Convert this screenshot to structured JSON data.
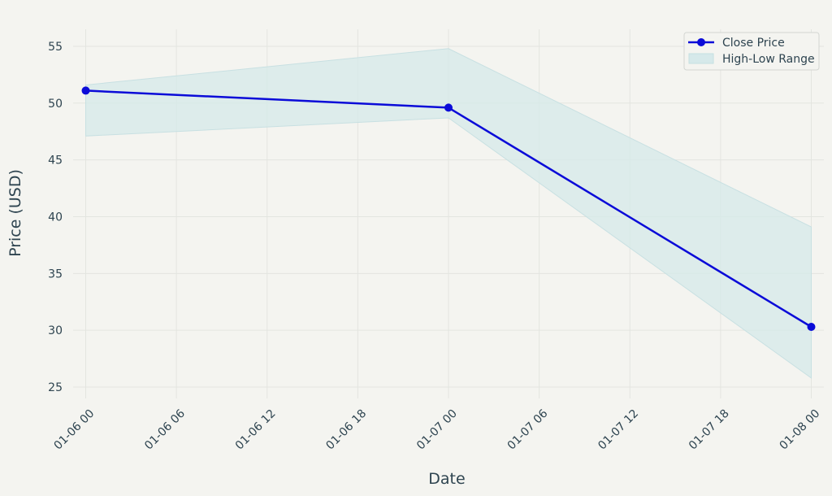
{
  "chart_data": {
    "type": "line",
    "xlabel": "Date",
    "ylabel": "Price (USD)",
    "ylim": [
      24,
      56.5
    ],
    "xlim": [
      "2024-01-05T23:10",
      "2024-01-08T00:50"
    ],
    "grid": true,
    "legend_position": "top-right",
    "x_ticks": [
      "01-06 00",
      "01-06 06",
      "01-06 12",
      "01-06 18",
      "01-07 00",
      "01-07 06",
      "01-07 12",
      "01-07 18",
      "01-08 00"
    ],
    "y_ticks": [
      25,
      30,
      35,
      40,
      45,
      50,
      55
    ],
    "x": [
      "2024-01-06T00:00",
      "2024-01-07T00:00",
      "2024-01-08T00:00"
    ],
    "series": [
      {
        "name": "Close Price",
        "type": "line",
        "color": "#0b0bd8",
        "values": [
          51.1,
          49.6,
          30.3
        ]
      },
      {
        "name": "High-Low Range",
        "type": "band",
        "color": "#d6e9ea",
        "high": [
          51.6,
          54.8,
          39.1
        ],
        "low": [
          47.1,
          48.7,
          25.8
        ]
      }
    ]
  }
}
